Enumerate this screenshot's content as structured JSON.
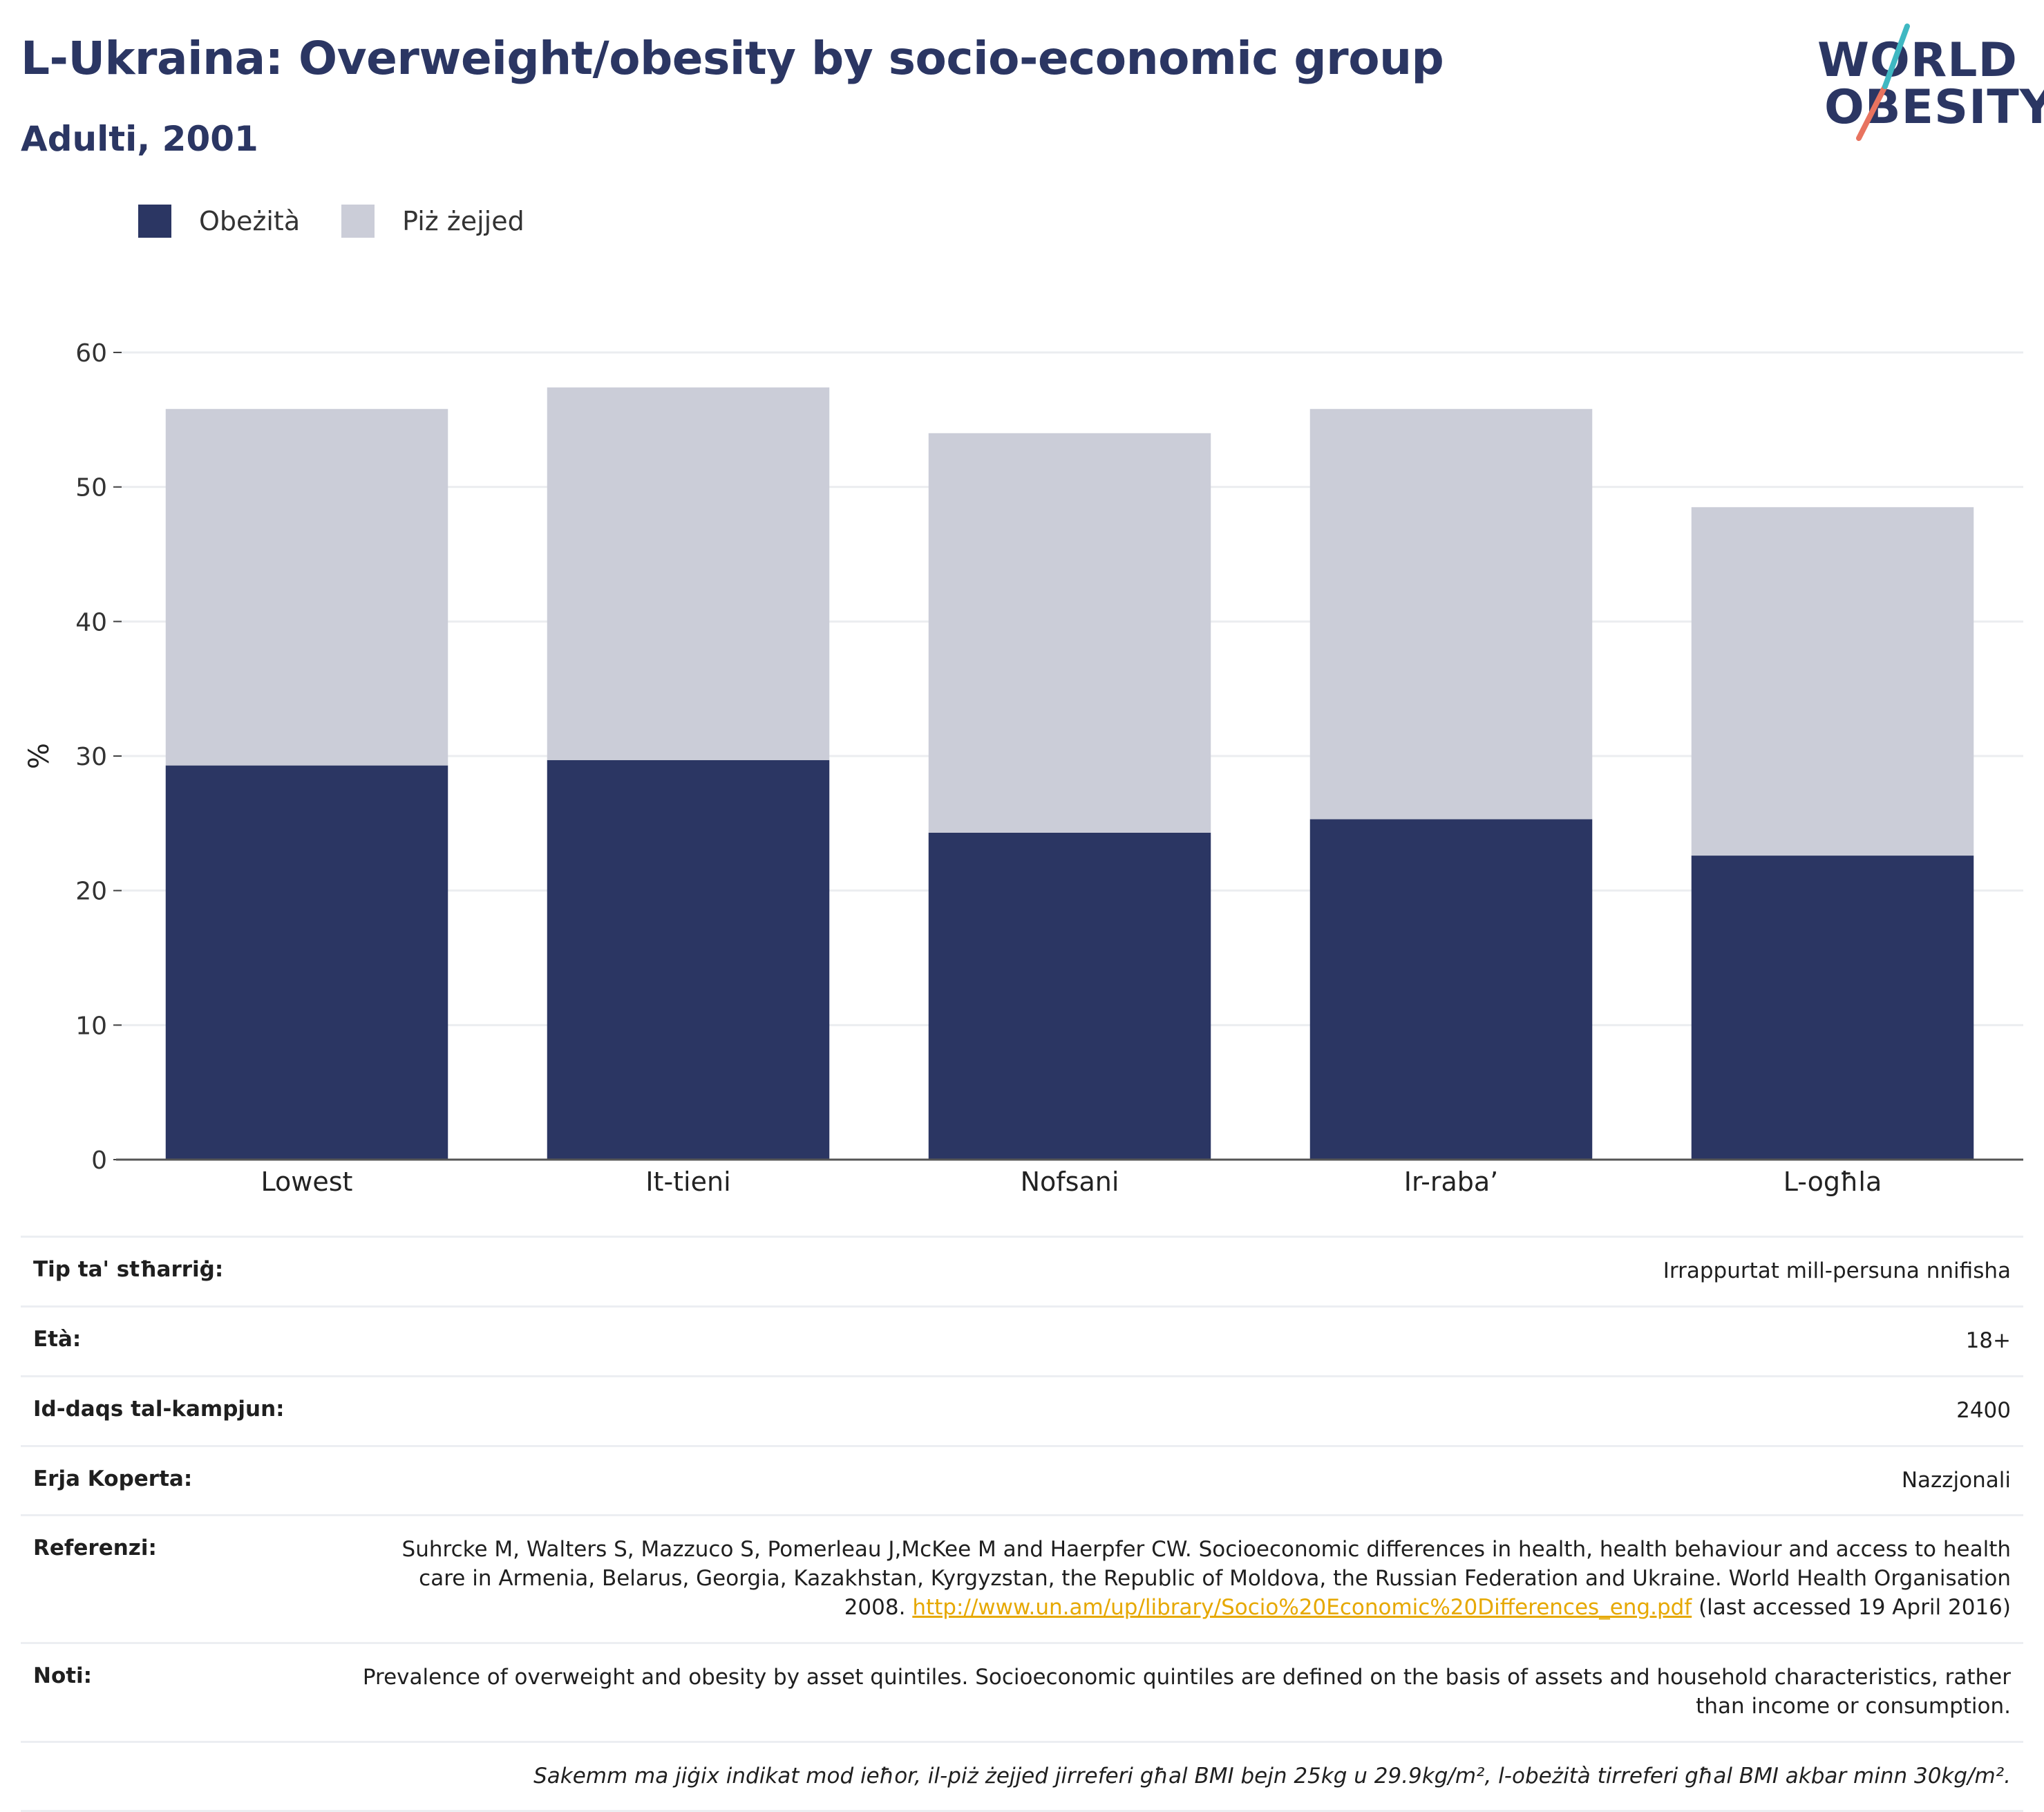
{
  "header": {
    "title": "L-Ukraina: Overweight/obesity by socio-economic group",
    "subtitle": "Adulti, 2001"
  },
  "logo": {
    "line1": "WORLD",
    "line2": "OBESITY"
  },
  "colors": {
    "obesity": "#2b3663",
    "overweight": "#cbcdd8",
    "accent_teal": "#3fb8c2",
    "accent_coral": "#e8735f",
    "link": "#e6a800"
  },
  "chart_data": {
    "type": "bar",
    "stacked": true,
    "categories": [
      "Lowest",
      "It-tieni",
      "Nofsani",
      "Ir-raba’",
      "L-ogħla"
    ],
    "series": [
      {
        "name": "Obeżità",
        "values": [
          29.3,
          29.7,
          24.3,
          25.3,
          22.6
        ]
      },
      {
        "name": "Piż żejjed",
        "values": [
          26.5,
          27.7,
          29.7,
          30.5,
          25.9
        ]
      }
    ],
    "ylabel": "%",
    "ylim": [
      0,
      60
    ],
    "yticks": [
      0,
      10,
      20,
      30,
      40,
      50,
      60
    ],
    "grid": true,
    "legend": "top-left"
  },
  "info": {
    "survey_type": {
      "label": "Tip ta' stħarriġ:",
      "value": "Irrappurtat mill-persuna nnifisha"
    },
    "age": {
      "label": "Età:",
      "value": "18+"
    },
    "sample_size": {
      "label": "Id-daqs tal-kampjun:",
      "value": "2400"
    },
    "coverage": {
      "label": "Erja Koperta:",
      "value": "Nazzjonali"
    },
    "references": {
      "label": "Referenzi:",
      "text_before": "Suhrcke M, Walters S, Mazzuco S, Pomerleau J,McKee M and Haerpfer CW. Socioeconomic differences in health, health behaviour and access to health care in Armenia, Belarus, Georgia, Kazakhstan, Kyrgyzstan, the Republic of Moldova, the Russian Federation and Ukraine. World Health Organisation 2008.",
      "link": "http://www.un.am/up/library/Socio%20Economic%20Differences_eng.pdf",
      "text_after": "(last accessed 19 April 2016)"
    },
    "notes": {
      "label": "Noti:",
      "value": "Prevalence of overweight and obesity by asset quintiles. Socioeconomic quintiles are defined on the basis of assets and household characteristics, rather than income or consumption."
    },
    "footnote": "Sakemm ma jiġix indikat mod ieħor, il-piż żejjed jirreferi għal BMI bejn 25kg u 29.9kg/m², l-obeżità tirreferi għal BMI akbar minn 30kg/m²."
  }
}
